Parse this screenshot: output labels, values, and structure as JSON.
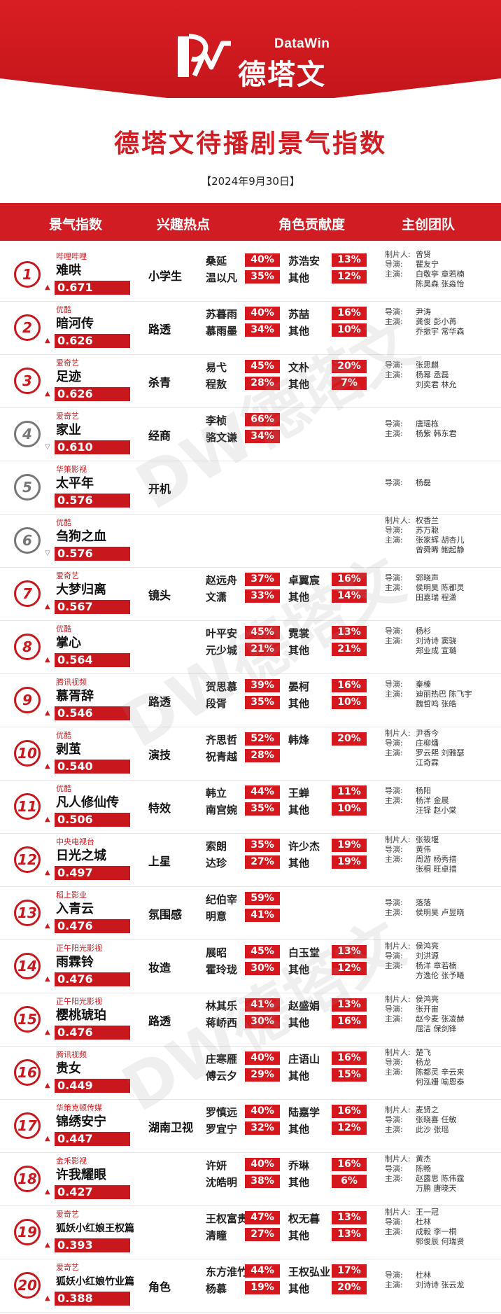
{
  "brand": {
    "en": "DataWin",
    "cn": "德塔文"
  },
  "title": "德塔文待播剧景气指数",
  "date": "【2024年9月30日】",
  "headers": [
    "景气指数",
    "兴趣热点",
    "角色贡献度",
    "主创团队"
  ],
  "colors": {
    "accent": "#d01c22",
    "rank_up": "#c8171d",
    "rank_down": "#777777"
  },
  "rows": [
    {
      "rank": "1",
      "trend": "up",
      "platform": "哔哩哔哩",
      "name": "难哄",
      "score": "0.671",
      "hot": "小学生",
      "roles": [
        [
          "桑延",
          "40%"
        ],
        [
          "苏浩安",
          "13%"
        ],
        [
          "温以凡",
          "35%"
        ],
        [
          "其他",
          "12%"
        ]
      ],
      "crew": [
        [
          "制片人:",
          "曾贤"
        ],
        [
          "导演:",
          "瞿友宁"
        ],
        [
          "主演:",
          "白敬亭 章若楠"
        ],
        [
          "",
          "陈昊森 张淼怡"
        ]
      ]
    },
    {
      "rank": "2",
      "trend": "up",
      "platform": "优酷",
      "name": "暗河传",
      "score": "0.626",
      "hot": "路透",
      "roles": [
        [
          "苏暮雨",
          "40%"
        ],
        [
          "苏喆",
          "16%"
        ],
        [
          "慕雨墨",
          "34%"
        ],
        [
          "其他",
          "10%"
        ]
      ],
      "crew": [
        [
          "导演:",
          "尹涛"
        ],
        [
          "主演:",
          "龚俊 彭小苒"
        ],
        [
          "",
          "乔振宇 常华森"
        ]
      ]
    },
    {
      "rank": "3",
      "trend": "up",
      "platform": "爱奇艺",
      "name": "足迹",
      "score": "0.626",
      "hot": "杀青",
      "roles": [
        [
          "易弋",
          "45%"
        ],
        [
          "文朴",
          "20%"
        ],
        [
          "程敖",
          "28%"
        ],
        [
          "其他",
          "7%"
        ]
      ],
      "crew": [
        [
          "导演:",
          "张思麒"
        ],
        [
          "主演:",
          "杨幂 丞磊"
        ],
        [
          "",
          "刘奕君 林允"
        ]
      ]
    },
    {
      "rank": "4",
      "trend": "down",
      "platform": "爱奇艺",
      "name": "家业",
      "score": "0.610",
      "hot": "经商",
      "roles": [
        [
          "李桢",
          "66%"
        ],
        [
          "骆文谦",
          "34%"
        ]
      ],
      "crew": [
        [
          "导演:",
          "唐瑶栋"
        ],
        [
          "主演:",
          "杨紫 韩东君"
        ]
      ]
    },
    {
      "rank": "5",
      "trend": "none",
      "platform": "华策影视",
      "name": "太平年",
      "score": "0.576",
      "hot": "开机",
      "roles": [],
      "crew": [
        [
          "导演:",
          "杨磊"
        ]
      ]
    },
    {
      "rank": "6",
      "trend": "down",
      "platform": "优酷",
      "name": "刍狗之血",
      "score": "0.576",
      "hot": "",
      "roles": [],
      "crew": [
        [
          "制片人:",
          "权香兰"
        ],
        [
          "导演:",
          "苏万聪"
        ],
        [
          "主演:",
          "张家辉 胡杏儿"
        ],
        [
          "",
          "曾舜晞 鲍起静"
        ]
      ]
    },
    {
      "rank": "7",
      "trend": "up",
      "platform": "爱奇艺",
      "name": "大梦归离",
      "score": "0.567",
      "hot": "镜头",
      "roles": [
        [
          "赵远舟",
          "37%"
        ],
        [
          "卓翼宸",
          "16%"
        ],
        [
          "文潇",
          "33%"
        ],
        [
          "其他",
          "14%"
        ]
      ],
      "crew": [
        [
          "导演:",
          "郭晓声"
        ],
        [
          "主演:",
          "侯明昊 陈都灵"
        ],
        [
          "",
          "田嘉瑞 程潇"
        ]
      ]
    },
    {
      "rank": "8",
      "trend": "up",
      "platform": "优酷",
      "name": "掌心",
      "score": "0.564",
      "hot": "",
      "roles": [
        [
          "叶平安",
          "45%"
        ],
        [
          "霓裳",
          "13%"
        ],
        [
          "元少城",
          "21%"
        ],
        [
          "其他",
          "21%"
        ]
      ],
      "crew": [
        [
          "导演:",
          "杨杉"
        ],
        [
          "主演:",
          "刘诗诗 窦骁"
        ],
        [
          "",
          "郑业成 宣璐"
        ]
      ]
    },
    {
      "rank": "9",
      "trend": "up",
      "platform": "腾讯视频",
      "name": "慕胥辞",
      "score": "0.546",
      "hot": "路透",
      "roles": [
        [
          "贺思慕",
          "39%"
        ],
        [
          "晏柯",
          "16%"
        ],
        [
          "段胥",
          "35%"
        ],
        [
          "其他",
          "10%"
        ]
      ],
      "crew": [
        [
          "导演:",
          "秦榛"
        ],
        [
          "主演:",
          "迪丽热巴 陈飞宇"
        ],
        [
          "",
          "魏哲鸣 张皓"
        ]
      ]
    },
    {
      "rank": "10",
      "trend": "up",
      "platform": "优酷",
      "name": "剥茧",
      "score": "0.540",
      "hot": "演技",
      "roles": [
        [
          "齐思哲",
          "52%"
        ],
        [
          "韩烽",
          "20%"
        ],
        [
          "祝青越",
          "28%"
        ]
      ],
      "crew": [
        [
          "制片人:",
          "尹香今"
        ],
        [
          "导演:",
          "庄柳燔"
        ],
        [
          "主演:",
          "罗云熙 刘雅瑟"
        ],
        [
          "",
          "江奇霖"
        ]
      ]
    },
    {
      "rank": "11",
      "trend": "up",
      "platform": "优酷",
      "name": "凡人修仙传",
      "score": "0.506",
      "hot": "特效",
      "roles": [
        [
          "韩立",
          "44%"
        ],
        [
          "王蝉",
          "11%"
        ],
        [
          "南宫婉",
          "35%"
        ],
        [
          "其他",
          "10%"
        ]
      ],
      "crew": [
        [
          "导演:",
          "杨阳"
        ],
        [
          "主演:",
          "杨洋 金晨"
        ],
        [
          "",
          "汪铎 赵小棠"
        ]
      ]
    },
    {
      "rank": "12",
      "trend": "up",
      "platform": "中央电视台",
      "name": "日光之城",
      "score": "0.497",
      "hot": "上星",
      "roles": [
        [
          "索朗",
          "35%"
        ],
        [
          "许少杰",
          "19%"
        ],
        [
          "达珍",
          "27%"
        ],
        [
          "其他",
          "19%"
        ]
      ],
      "crew": [
        [
          "制片人:",
          "张筱堰"
        ],
        [
          "导演:",
          "黄伟"
        ],
        [
          "主演:",
          "周游 杨秀措"
        ],
        [
          "",
          "张桐 旺卓措"
        ]
      ]
    },
    {
      "rank": "13",
      "trend": "up",
      "platform": "稻上影业",
      "name": "入青云",
      "score": "0.476",
      "hot": "氛围感",
      "roles": [
        [
          "纪伯宰",
          "59%"
        ],
        [
          "明意",
          "41%"
        ]
      ],
      "crew": [
        [
          "导演:",
          "落落"
        ],
        [
          "主演:",
          "侯明昊 卢昱晓"
        ]
      ]
    },
    {
      "rank": "14",
      "trend": "up",
      "platform": "正午阳光影视",
      "name": "雨霖铃",
      "score": "0.476",
      "hot": "妆造",
      "roles": [
        [
          "展昭",
          "45%"
        ],
        [
          "白玉堂",
          "13%"
        ],
        [
          "霍玲珑",
          "30%"
        ],
        [
          "其他",
          "12%"
        ]
      ],
      "crew": [
        [
          "制片人:",
          "侯鸿亮"
        ],
        [
          "导演:",
          "刘洪源"
        ],
        [
          "主演:",
          "杨洋 章若楠"
        ],
        [
          "",
          "方逸伦 张予曦"
        ]
      ]
    },
    {
      "rank": "15",
      "trend": "up",
      "platform": "正午阳光影视",
      "name": "樱桃琥珀",
      "score": "0.476",
      "hot": "路透",
      "roles": [
        [
          "林其乐",
          "41%"
        ],
        [
          "赵盛娟",
          "13%"
        ],
        [
          "蒋峤西",
          "30%"
        ],
        [
          "其他",
          "16%"
        ]
      ],
      "crew": [
        [
          "制片人:",
          "侯鸿亮"
        ],
        [
          "导演:",
          "张开宙"
        ],
        [
          "主演:",
          "赵今麦 张凌赫"
        ],
        [
          "",
          "屈洁 保剑锋"
        ]
      ]
    },
    {
      "rank": "16",
      "trend": "up",
      "platform": "腾讯视频",
      "name": "贵女",
      "score": "0.449",
      "hot": "",
      "roles": [
        [
          "庄寒雁",
          "40%"
        ],
        [
          "庄语山",
          "16%"
        ],
        [
          "傅云夕",
          "29%"
        ],
        [
          "其他",
          "15%"
        ]
      ],
      "crew": [
        [
          "制片人:",
          "楚飞"
        ],
        [
          "导演:",
          "杨龙"
        ],
        [
          "主演:",
          "陈都灵 辛云来"
        ],
        [
          "",
          "何泓姗 喻恩泰"
        ]
      ]
    },
    {
      "rank": "17",
      "trend": "up",
      "platform": "华策克顿传媒",
      "name": "锦绣安宁",
      "score": "0.447",
      "hot": "湖南卫视",
      "roles": [
        [
          "罗慎远",
          "40%"
        ],
        [
          "陆嘉学",
          "16%"
        ],
        [
          "罗宜宁",
          "32%"
        ],
        [
          "其他",
          "12%"
        ]
      ],
      "crew": [
        [
          "制片人:",
          "麦贤之"
        ],
        [
          "导演:",
          "张晓喜 任敏"
        ],
        [
          "主演:",
          "此沙 张瑶"
        ]
      ]
    },
    {
      "rank": "18",
      "trend": "up",
      "platform": "金禾影视",
      "name": "许我耀眼",
      "score": "0.427",
      "hot": "",
      "roles": [
        [
          "许妍",
          "40%"
        ],
        [
          "乔琳",
          "16%"
        ],
        [
          "沈皓明",
          "38%"
        ],
        [
          "其他",
          "6%"
        ]
      ],
      "crew": [
        [
          "制片人:",
          "黄杰"
        ],
        [
          "导演:",
          "陈畅"
        ],
        [
          "主演:",
          "赵露思 陈伟霆"
        ],
        [
          "",
          "万鹏 唐晓天"
        ]
      ]
    },
    {
      "rank": "19",
      "trend": "up",
      "platform": "爱奇艺",
      "name": "狐妖小红娘王权篇",
      "score": "0.393",
      "hot": "",
      "roles": [
        [
          "王权富贵",
          "47%"
        ],
        [
          "权无暮",
          "13%"
        ],
        [
          "清瞳",
          "27%"
        ],
        [
          "其他",
          "13%"
        ]
      ],
      "crew": [
        [
          "制片人:",
          "王一冠"
        ],
        [
          "导演:",
          "杜林"
        ],
        [
          "主演:",
          "成毅 李一桐"
        ],
        [
          "",
          "郭俊辰 何瑞贤"
        ]
      ]
    },
    {
      "rank": "20",
      "trend": "up",
      "platform": "爱奇艺",
      "name": "狐妖小红娘竹业篇",
      "score": "0.388",
      "hot": "角色",
      "roles": [
        [
          "东方淮竹",
          "44%"
        ],
        [
          "王权弘业",
          "17%"
        ],
        [
          "杨慕",
          "19%"
        ],
        [
          "其他",
          "20%"
        ]
      ],
      "crew": [
        [
          "导演:",
          "杜林"
        ],
        [
          "主演:",
          "刘诗诗 张云龙"
        ]
      ]
    }
  ]
}
